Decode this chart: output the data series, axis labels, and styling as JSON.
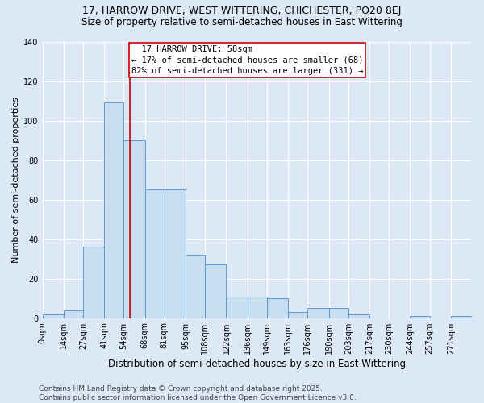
{
  "title": "17, HARROW DRIVE, WEST WITTERING, CHICHESTER, PO20 8EJ",
  "subtitle": "Size of property relative to semi-detached houses in East Wittering",
  "xlabel": "Distribution of semi-detached houses by size in East Wittering",
  "ylabel": "Number of semi-detached properties",
  "bar_labels": [
    "0sqm",
    "14sqm",
    "27sqm",
    "41sqm",
    "54sqm",
    "68sqm",
    "81sqm",
    "95sqm",
    "108sqm",
    "122sqm",
    "136sqm",
    "149sqm",
    "163sqm",
    "176sqm",
    "190sqm",
    "203sqm",
    "217sqm",
    "230sqm",
    "244sqm",
    "257sqm",
    "271sqm"
  ],
  "bin_edges": [
    0,
    14,
    27,
    41,
    54,
    68,
    81,
    95,
    108,
    122,
    136,
    149,
    163,
    176,
    190,
    203,
    217,
    230,
    244,
    257,
    271,
    285
  ],
  "bar_values": [
    2,
    4,
    36,
    109,
    90,
    65,
    65,
    32,
    27,
    11,
    11,
    10,
    3,
    5,
    5,
    2,
    0,
    0,
    1,
    0,
    1
  ],
  "bar_color": "#c9ddf0",
  "bar_edge_color": "#5b9bd5",
  "property_value": 58,
  "property_label": "17 HARROW DRIVE: 58sqm",
  "pct_smaller": 17,
  "pct_smaller_count": 68,
  "pct_larger": 82,
  "pct_larger_count": 331,
  "annotation_box_color": "#ffffff",
  "annotation_box_edge_color": "#cc0000",
  "red_line_color": "#cc0000",
  "ylim": [
    0,
    140
  ],
  "yticks": [
    0,
    20,
    40,
    60,
    80,
    100,
    120,
    140
  ],
  "bg_color": "#dce8f5",
  "grid_color": "#ffffff",
  "footer": "Contains HM Land Registry data © Crown copyright and database right 2025.\nContains public sector information licensed under the Open Government Licence v3.0.",
  "title_fontsize": 9,
  "subtitle_fontsize": 8.5,
  "xlabel_fontsize": 8.5,
  "ylabel_fontsize": 8,
  "tick_fontsize": 7,
  "footer_fontsize": 6.5,
  "ann_fontsize": 7.5
}
